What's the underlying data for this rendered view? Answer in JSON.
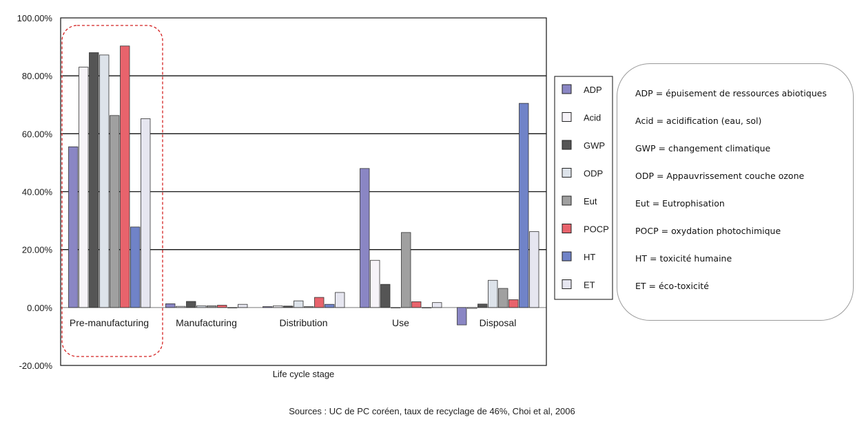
{
  "chart_data": {
    "type": "bar",
    "title": "",
    "xlabel": "Life cycle stage",
    "ylabel": "",
    "ylim": [
      -0.2,
      1.0
    ],
    "yticks": [
      {
        "value": -0.2,
        "label": "-20.00%"
      },
      {
        "value": 0.0,
        "label": "0.00%"
      },
      {
        "value": 0.2,
        "label": "20.00%"
      },
      {
        "value": 0.4,
        "label": "40.00%"
      },
      {
        "value": 0.6,
        "label": "60.00%"
      },
      {
        "value": 0.8,
        "label": "80.00%"
      },
      {
        "value": 1.0,
        "label": "100.00%"
      }
    ],
    "gridlines_at": [
      0.2,
      0.4,
      0.6,
      0.8
    ],
    "categories": [
      "Pre-manufacturing",
      "Manufacturing",
      "Distribution",
      "Use",
      "Disposal"
    ],
    "highlighted_category": "Pre-manufacturing",
    "legend_position": "right",
    "series": [
      {
        "name": "ADP",
        "color": "#8a86c4",
        "values": [
          0.555,
          0.013,
          0.003,
          0.48,
          -0.06
        ]
      },
      {
        "name": "Acid",
        "color": "#f6f3f8",
        "values": [
          0.83,
          0.004,
          0.006,
          0.163,
          -0.003
        ]
      },
      {
        "name": "GWP",
        "color": "#555555",
        "values": [
          0.88,
          0.021,
          0.005,
          0.08,
          0.012
        ]
      },
      {
        "name": "ODP",
        "color": "#dde3ea",
        "values": [
          0.872,
          0.006,
          0.023,
          0.0,
          0.094
        ]
      },
      {
        "name": "Eut",
        "color": "#a0a0a0",
        "values": [
          0.663,
          0.006,
          0.003,
          0.259,
          0.066
        ]
      },
      {
        "name": "POCP",
        "color": "#e8636c",
        "values": [
          0.903,
          0.008,
          0.035,
          0.02,
          0.027
        ]
      },
      {
        "name": "HT",
        "color": "#7083c8",
        "values": [
          0.278,
          0.0,
          0.011,
          0.0,
          0.705
        ]
      },
      {
        "name": "ET",
        "color": "#e6e6f0",
        "values": [
          0.652,
          0.011,
          0.052,
          0.017,
          0.262
        ]
      }
    ]
  },
  "definitions": [
    "ADP = épuisement de ressources abiotiques",
    "Acid = acidification (eau, sol)",
    "GWP = changement climatique",
    "ODP = Appauvrissement couche ozone",
    "Eut = Eutrophisation",
    "POCP = oxydation photochimique",
    "HT = toxicité humaine",
    "ET = éco-toxicité"
  ],
  "source": "Sources : UC de PC coréen, taux de recyclage de 46%, Choi et al, 2006"
}
